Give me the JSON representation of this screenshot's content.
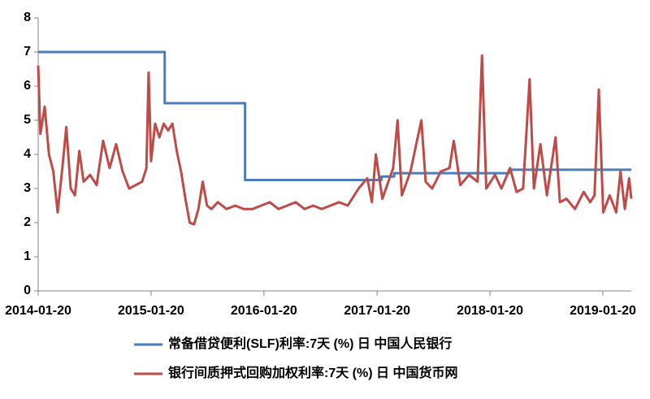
{
  "chart_data": {
    "type": "line",
    "ylim": [
      0,
      8
    ],
    "yticks": [
      0,
      1,
      2,
      3,
      4,
      5,
      6,
      7,
      8
    ],
    "xlim": [
      "2014-01-20",
      "2019-04-22"
    ],
    "xticks": [
      "2014-01-20",
      "2015-01-20",
      "2016-01-20",
      "2017-01-20",
      "2018-01-20",
      "2019-01-20"
    ],
    "grid": false,
    "legend": "bottom",
    "series": [
      {
        "name": "常备借贷便利(SLF)利率:7天 (%) 日 中国人民银行",
        "color": "#4a7ebb",
        "x": [
          "2014-01-20",
          "2015-03-05",
          "2015-03-05",
          "2015-11-20",
          "2015-11-20",
          "2017-02-03",
          "2017-02-03",
          "2017-03-16",
          "2017-03-16",
          "2018-03-22",
          "2018-03-22",
          "2019-04-22"
        ],
        "values": [
          7,
          7,
          5.5,
          5.5,
          3.25,
          3.25,
          3.35,
          3.35,
          3.45,
          3.45,
          3.55,
          3.55
        ]
      },
      {
        "name": "银行间质押式回购加权利率:7天 (%) 日 中国货币网",
        "color": "#be4b48",
        "x": [
          "2014-01-20",
          "2014-01-27",
          "2014-02-10",
          "2014-02-24",
          "2014-03-10",
          "2014-03-24",
          "2014-04-07",
          "2014-04-21",
          "2014-05-05",
          "2014-05-19",
          "2014-06-02",
          "2014-06-16",
          "2014-07-07",
          "2014-07-28",
          "2014-08-18",
          "2014-09-08",
          "2014-09-29",
          "2014-10-20",
          "2014-11-10",
          "2014-12-01",
          "2014-12-22",
          "2015-01-05",
          "2015-01-12",
          "2015-01-20",
          "2015-02-02",
          "2015-02-16",
          "2015-03-02",
          "2015-03-16",
          "2015-03-30",
          "2015-04-13",
          "2015-04-27",
          "2015-05-11",
          "2015-05-25",
          "2015-06-08",
          "2015-06-22",
          "2015-07-06",
          "2015-07-20",
          "2015-08-03",
          "2015-08-24",
          "2015-09-21",
          "2015-10-19",
          "2015-11-16",
          "2015-12-14",
          "2016-01-11",
          "2016-02-08",
          "2016-03-07",
          "2016-04-04",
          "2016-05-02",
          "2016-05-30",
          "2016-06-27",
          "2016-07-25",
          "2016-08-22",
          "2016-09-19",
          "2016-10-17",
          "2016-11-21",
          "2016-12-19",
          "2017-01-03",
          "2017-01-16",
          "2017-02-06",
          "2017-03-13",
          "2017-03-27",
          "2017-04-10",
          "2017-05-08",
          "2017-06-12",
          "2017-06-26",
          "2017-07-17",
          "2017-08-14",
          "2017-09-11",
          "2017-09-25",
          "2017-10-16",
          "2017-11-13",
          "2017-12-11",
          "2017-12-25",
          "2018-01-08",
          "2018-02-05",
          "2018-02-26",
          "2018-03-26",
          "2018-04-16",
          "2018-05-07",
          "2018-05-28",
          "2018-06-11",
          "2018-07-02",
          "2018-07-23",
          "2018-08-20",
          "2018-09-03",
          "2018-09-24",
          "2018-10-22",
          "2018-11-19",
          "2018-12-10",
          "2018-12-24",
          "2019-01-07",
          "2019-01-21",
          "2019-02-11",
          "2019-03-04",
          "2019-03-18",
          "2019-04-01",
          "2019-04-15",
          "2019-04-22"
        ],
        "values": [
          6.6,
          4.6,
          5.4,
          4.0,
          3.5,
          2.3,
          3.5,
          4.8,
          3.0,
          2.8,
          4.1,
          3.2,
          3.4,
          3.1,
          4.4,
          3.6,
          4.3,
          3.5,
          3.0,
          3.1,
          3.2,
          3.6,
          6.4,
          3.8,
          4.9,
          4.5,
          4.9,
          4.7,
          4.9,
          4.1,
          3.5,
          2.7,
          2.0,
          1.95,
          2.4,
          3.2,
          2.5,
          2.4,
          2.6,
          2.4,
          2.5,
          2.4,
          2.4,
          2.5,
          2.6,
          2.4,
          2.5,
          2.6,
          2.4,
          2.5,
          2.4,
          2.5,
          2.6,
          2.5,
          3.0,
          3.3,
          2.6,
          4.0,
          2.7,
          3.6,
          5.0,
          2.8,
          3.5,
          5.0,
          3.2,
          3.0,
          3.5,
          3.6,
          4.4,
          3.1,
          3.4,
          3.2,
          6.9,
          3.0,
          3.4,
          3.0,
          3.6,
          2.9,
          3.0,
          6.2,
          3.0,
          4.3,
          2.8,
          4.5,
          2.6,
          2.7,
          2.4,
          2.9,
          2.6,
          2.8,
          5.9,
          2.3,
          2.8,
          2.3,
          3.5,
          2.4,
          3.3,
          2.7
        ]
      }
    ]
  }
}
